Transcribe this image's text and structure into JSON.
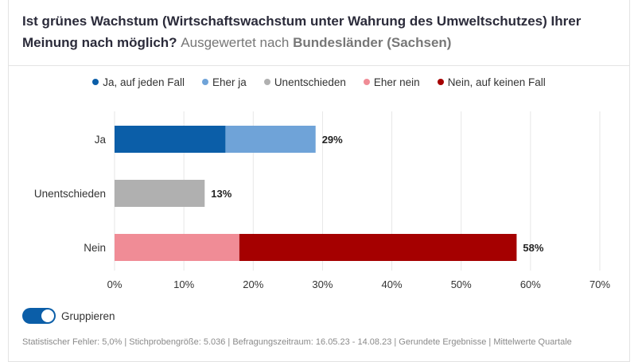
{
  "title": {
    "question": "Ist grünes Wachstum (Wirtschaftswachstum unter Wahrung des Umweltschutzes) Ihrer Meinung nach möglich?",
    "evaluated_by": "Ausgewertet nach",
    "group": "Bundesländer (Sachsen)"
  },
  "legend": [
    {
      "label": "Ja, auf jeden Fall",
      "color": "#0b5ea8"
    },
    {
      "label": "Eher ja",
      "color": "#6fa3d8"
    },
    {
      "label": "Unentschieden",
      "color": "#b0b0b0"
    },
    {
      "label": "Eher nein",
      "color": "#f08c96"
    },
    {
      "label": "Nein, auf keinen Fall",
      "color": "#a50000"
    }
  ],
  "toggle": {
    "label": "Gruppieren",
    "on": true
  },
  "footer": "Statistischer Fehler: 5,0% | Stichprobengröße: 5.036 | Befragungszeitraum: 16.05.23 - 14.08.23 | Gerundete Ergebnisse | Mittelwerte Quartale",
  "chart_data": {
    "type": "bar",
    "orientation": "horizontal",
    "stacked": true,
    "categories": [
      "Ja",
      "Unentschieden",
      "Nein"
    ],
    "series": [
      {
        "name": "Ja, auf jeden Fall",
        "color": "#0b5ea8",
        "values": [
          16,
          0,
          0
        ]
      },
      {
        "name": "Eher ja",
        "color": "#6fa3d8",
        "values": [
          13,
          0,
          0
        ]
      },
      {
        "name": "Unentschieden",
        "color": "#b0b0b0",
        "values": [
          0,
          13,
          0
        ]
      },
      {
        "name": "Eher nein",
        "color": "#f08c96",
        "values": [
          0,
          0,
          18
        ]
      },
      {
        "name": "Nein, auf keinen Fall",
        "color": "#a50000",
        "values": [
          0,
          0,
          40
        ]
      }
    ],
    "totals": [
      "29%",
      "13%",
      "58%"
    ],
    "x_ticks": [
      "0%",
      "10%",
      "20%",
      "30%",
      "40%",
      "50%",
      "60%",
      "70%"
    ],
    "xlim": [
      0,
      70
    ],
    "grid": true,
    "legend_position": "top"
  }
}
